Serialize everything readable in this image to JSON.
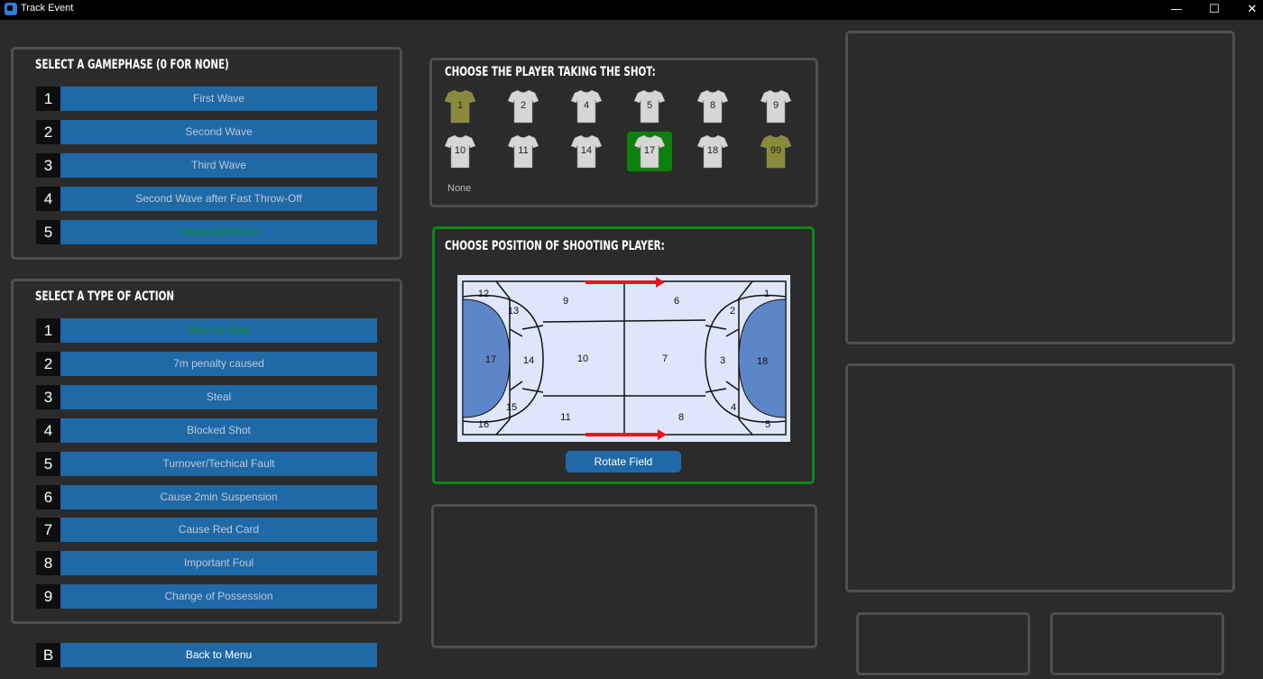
{
  "window": {
    "title": "Track Event",
    "minimize": "—",
    "maximize": "☐",
    "close": "✕"
  },
  "gamephase": {
    "heading": "SELECT A GAMEPHASE (0 FOR NONE)",
    "items": [
      {
        "num": "1",
        "label": "First Wave"
      },
      {
        "num": "2",
        "label": "Second Wave"
      },
      {
        "num": "3",
        "label": "Third Wave"
      },
      {
        "num": "4",
        "label": "Second Wave after Fast Throw-Off"
      },
      {
        "num": "5",
        "label": "Positional Attack"
      }
    ],
    "selected": "5"
  },
  "action": {
    "heading": "SELECT A TYPE OF ACTION",
    "items": [
      {
        "num": "1",
        "label": "Shot on Goal"
      },
      {
        "num": "2",
        "label": "7m penalty caused"
      },
      {
        "num": "3",
        "label": "Steal"
      },
      {
        "num": "4",
        "label": "Blocked Shot"
      },
      {
        "num": "5",
        "label": "Turnover/Techical Fault"
      },
      {
        "num": "6",
        "label": "Cause 2min Suspension"
      },
      {
        "num": "7",
        "label": "Cause Red Card"
      },
      {
        "num": "8",
        "label": "Important Foul"
      },
      {
        "num": "9",
        "label": "Change of Possession"
      }
    ],
    "selected": "1"
  },
  "back": {
    "num": "B",
    "label": "Back to Menu"
  },
  "players": {
    "heading": "CHOOSE THE PLAYER TAKING THE SHOT:",
    "jerseys": [
      {
        "number": "1",
        "color": "#8a8a3a"
      },
      {
        "number": "2",
        "color": "#d6d6d6"
      },
      {
        "number": "4",
        "color": "#d6d6d6"
      },
      {
        "number": "5",
        "color": "#d6d6d6"
      },
      {
        "number": "8",
        "color": "#d6d6d6"
      },
      {
        "number": "9",
        "color": "#d6d6d6"
      },
      {
        "number": "10",
        "color": "#d6d6d6"
      },
      {
        "number": "11",
        "color": "#d6d6d6"
      },
      {
        "number": "14",
        "color": "#d6d6d6"
      },
      {
        "number": "17",
        "color": "#d6d6d6"
      },
      {
        "number": "18",
        "color": "#d6d6d6"
      },
      {
        "number": "99",
        "color": "#8a8a3a"
      }
    ],
    "selected": "17",
    "none_label": "None"
  },
  "position": {
    "heading": "CHOOSE POSITION OF SHOOTING PLAYER:",
    "zones": [
      "1",
      "2",
      "3",
      "4",
      "5",
      "6",
      "7",
      "8",
      "9",
      "10",
      "11",
      "12",
      "13",
      "14",
      "15",
      "16",
      "17",
      "18"
    ],
    "rotate_label": "Rotate Field"
  },
  "colors": {
    "accent_blue": "#1f69a7",
    "selected_green": "#0d7f0d",
    "field_bg": "#dfe6fb",
    "goal_area": "#5d86c8",
    "arrow": "#e8141c"
  }
}
